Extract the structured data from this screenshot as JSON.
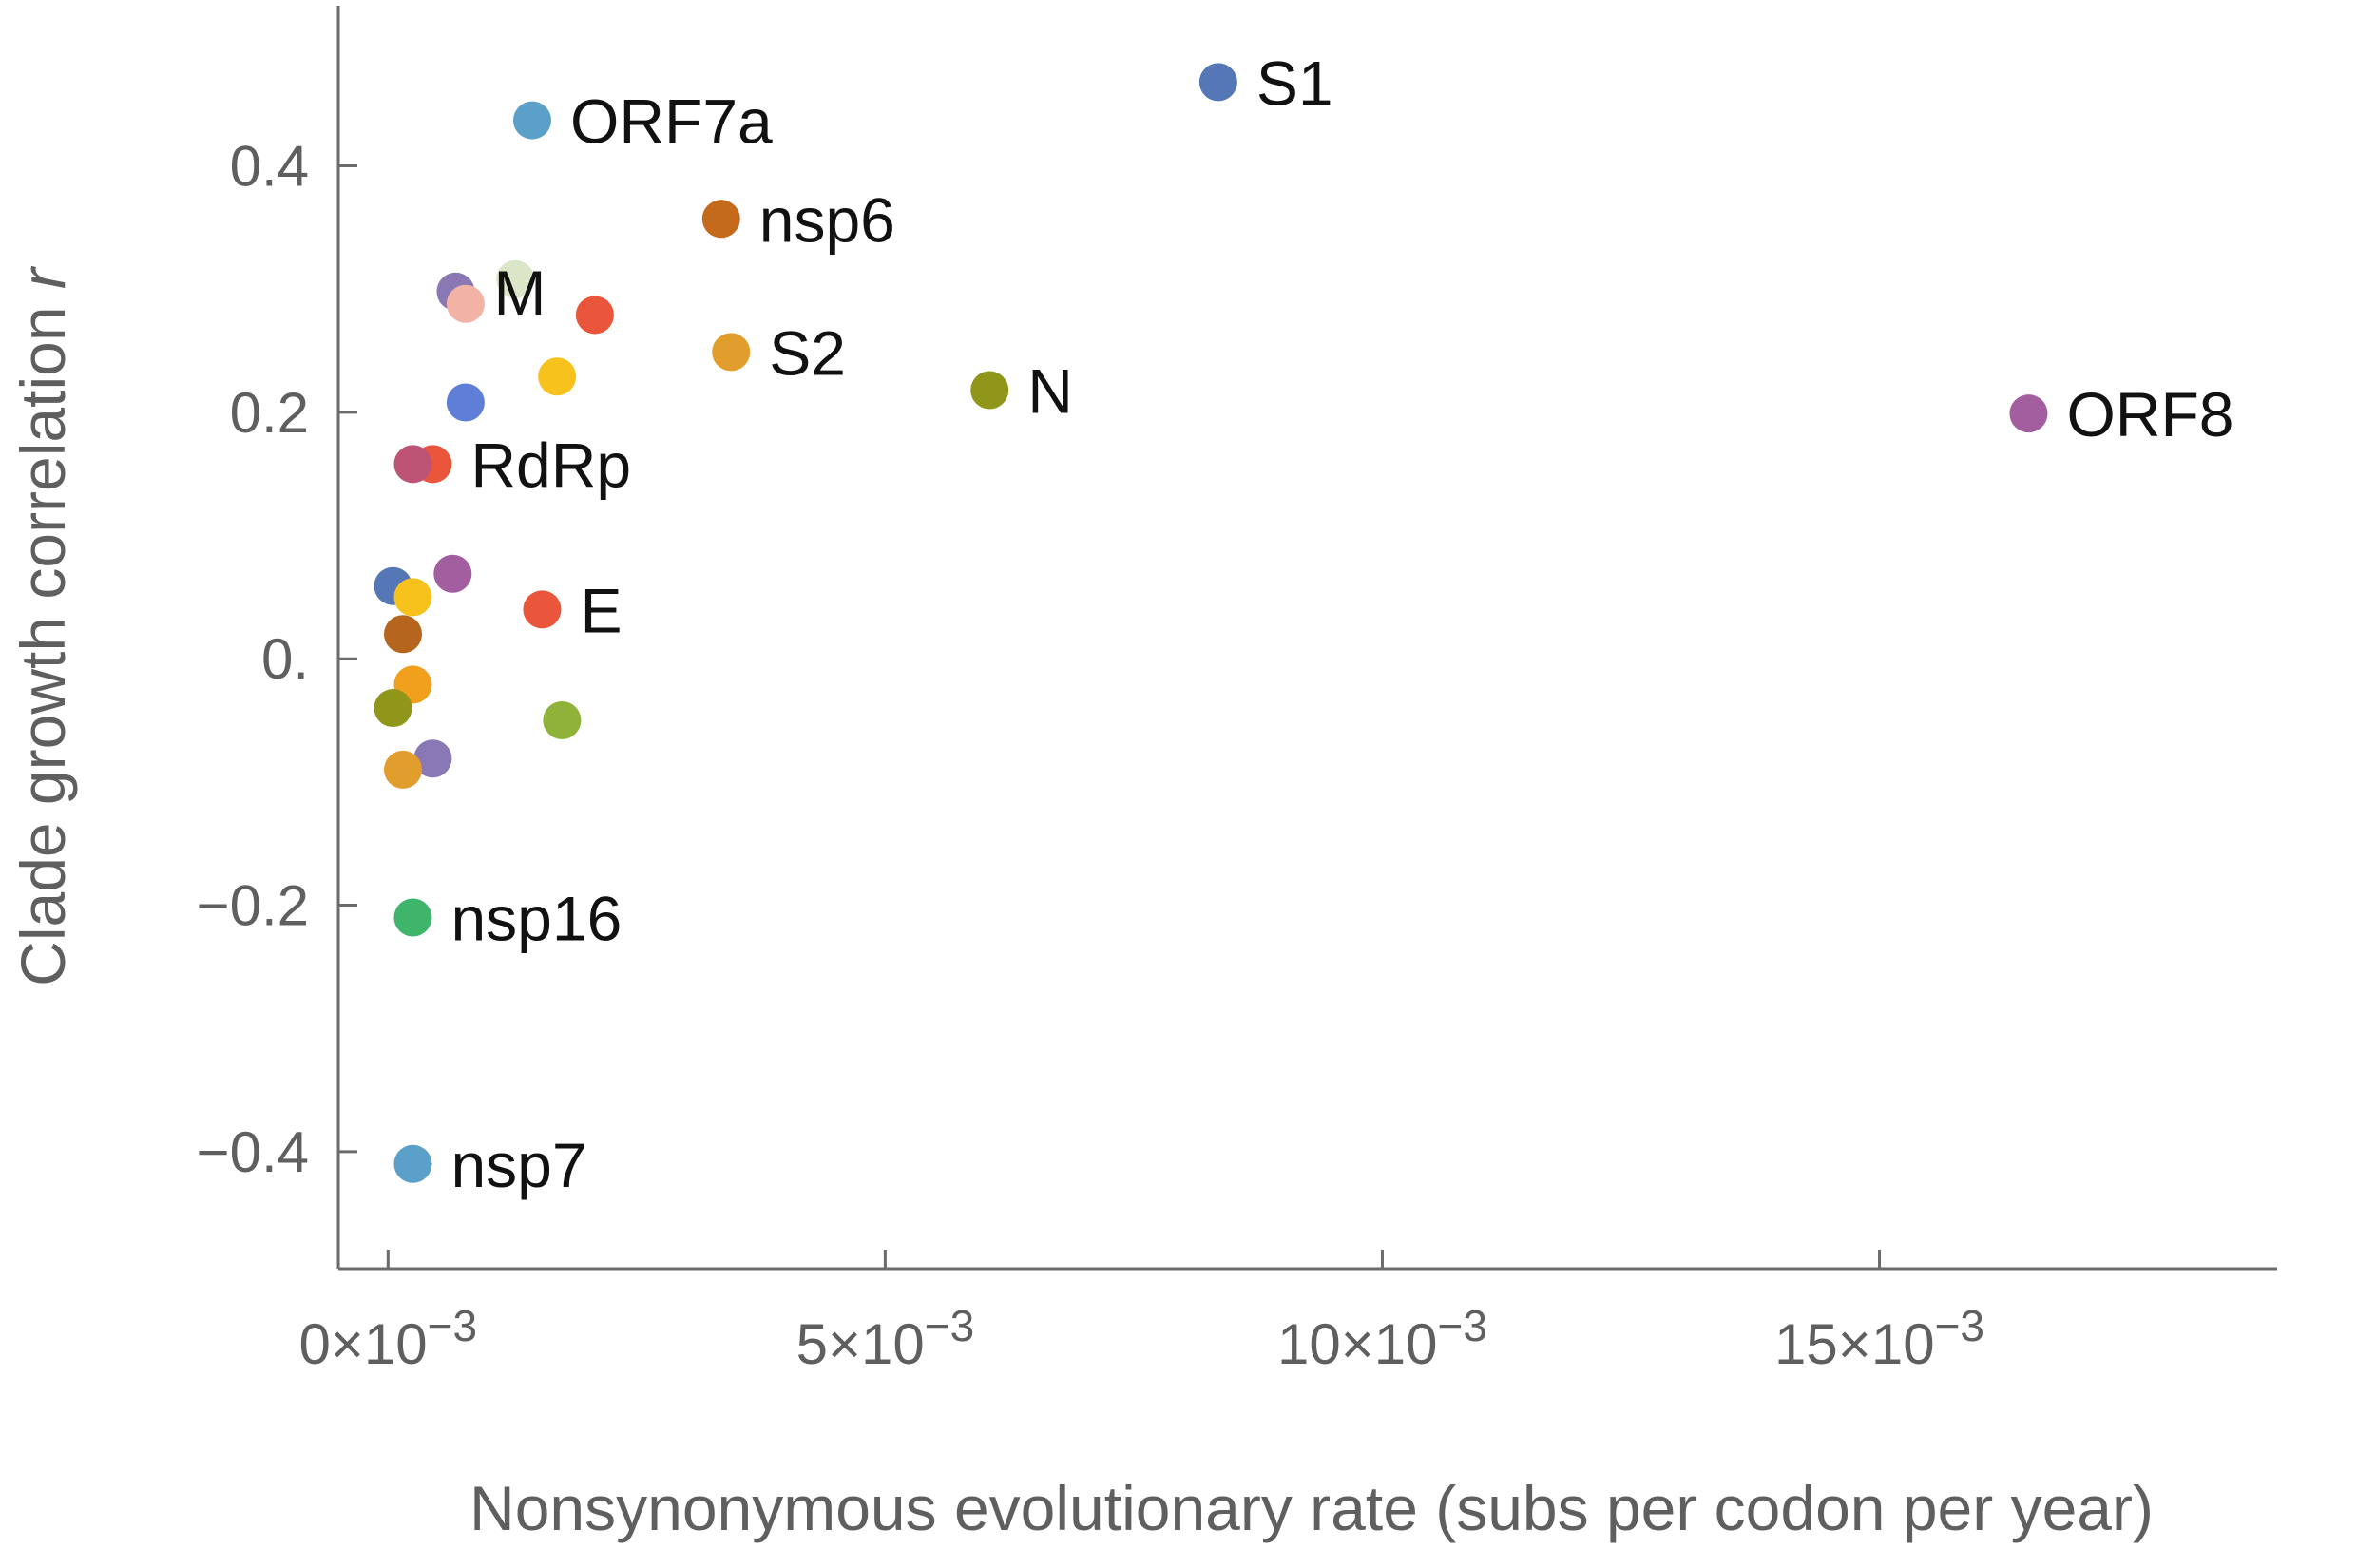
{
  "chart_data": {
    "type": "scatter",
    "title": "",
    "xlabel": "Nonsynonymous evolutionary rate (subs per codon per year)",
    "ylabel": "Clade growth correlation",
    "ylabel_italic": "r",
    "xlim": [
      -0.0005,
      0.019
    ],
    "ylim": [
      -0.495,
      0.53
    ],
    "x_ticks": [
      {
        "value": 0.0,
        "label": "0×10",
        "exp": "−3"
      },
      {
        "value": 0.005,
        "label": "5×10",
        "exp": "−3"
      },
      {
        "value": 0.01,
        "label": "10×10",
        "exp": "−3"
      },
      {
        "value": 0.015,
        "label": "15×10",
        "exp": "−3"
      }
    ],
    "y_ticks": [
      {
        "value": 0.4,
        "label": "0.4"
      },
      {
        "value": 0.2,
        "label": "0.2"
      },
      {
        "value": 0.0,
        "label": "0."
      },
      {
        "value": -0.2,
        "label": "−0.2"
      },
      {
        "value": -0.4,
        "label": "−0.4"
      }
    ],
    "grid": false,
    "legend": "none",
    "points": [
      {
        "x": 0.00835,
        "y": 0.468,
        "color": "#5577b5",
        "label": "S1"
      },
      {
        "x": 0.00145,
        "y": 0.437,
        "color": "#5aa0c8",
        "label": "ORF7a"
      },
      {
        "x": 0.00335,
        "y": 0.357,
        "color": "#c46a1c",
        "label": "nsp6"
      },
      {
        "x": 0.00128,
        "y": 0.308,
        "color": "#dbe5c8",
        "label": ""
      },
      {
        "x": 0.00068,
        "y": 0.298,
        "color": "#8a78b5",
        "label": "M"
      },
      {
        "x": 0.00078,
        "y": 0.288,
        "color": "#f2b3a6",
        "label": ""
      },
      {
        "x": 0.00208,
        "y": 0.279,
        "color": "#e9563c",
        "label": ""
      },
      {
        "x": 0.00345,
        "y": 0.249,
        "color": "#e29e2c",
        "label": "S2"
      },
      {
        "x": 0.0017,
        "y": 0.229,
        "color": "#f8c21c",
        "label": ""
      },
      {
        "x": 0.00605,
        "y": 0.218,
        "color": "#8f961a",
        "label": "N"
      },
      {
        "x": 0.00078,
        "y": 0.208,
        "color": "#5f7ed8",
        "label": ""
      },
      {
        "x": 0.0165,
        "y": 0.199,
        "color": "#a35ea0",
        "label": "ORF8"
      },
      {
        "x": 0.00045,
        "y": 0.158,
        "color": "#e9563c",
        "label": "RdRp"
      },
      {
        "x": 0.00025,
        "y": 0.158,
        "color": "#bd5476",
        "label": ""
      },
      {
        "x": 0.00065,
        "y": 0.069,
        "color": "#a35ea0",
        "label": ""
      },
      {
        "x": 5e-05,
        "y": 0.059,
        "color": "#5577b5",
        "label": ""
      },
      {
        "x": 0.00025,
        "y": 0.05,
        "color": "#f8c21c",
        "label": ""
      },
      {
        "x": 0.00155,
        "y": 0.04,
        "color": "#e9563c",
        "label": "E"
      },
      {
        "x": 0.00015,
        "y": 0.02,
        "color": "#b5651d",
        "label": ""
      },
      {
        "x": 0.00025,
        "y": -0.021,
        "color": "#f0a01c",
        "label": ""
      },
      {
        "x": 5e-05,
        "y": -0.04,
        "color": "#8f961a",
        "label": ""
      },
      {
        "x": 0.00175,
        "y": -0.05,
        "color": "#8fb23a",
        "label": ""
      },
      {
        "x": 0.00045,
        "y": -0.081,
        "color": "#8a78b5",
        "label": ""
      },
      {
        "x": 0.00015,
        "y": -0.09,
        "color": "#e29e2c",
        "label": ""
      },
      {
        "x": 0.00025,
        "y": -0.21,
        "color": "#3fb56b",
        "label": "nsp16"
      },
      {
        "x": 0.00025,
        "y": -0.41,
        "color": "#5aa0c8",
        "label": "nsp7"
      }
    ]
  }
}
